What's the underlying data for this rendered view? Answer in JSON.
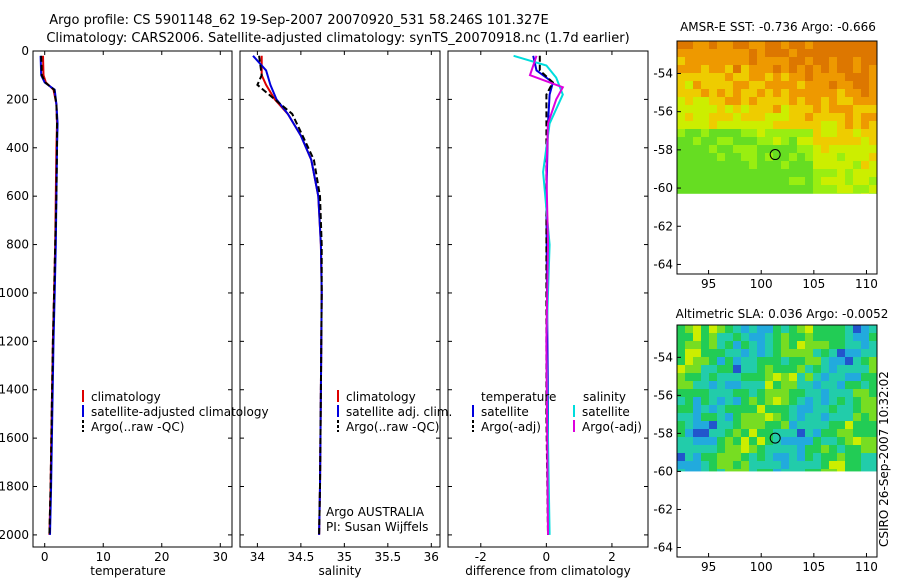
{
  "header": {
    "line1": "Argo profile: CS 5901148_62 19-Sep-2007 20070920_531 58.246S 101.327E",
    "line2": "Climatology: CARS2006. Satellite-adjusted climatology: synTS_20070918.nc (1.7d earlier)"
  },
  "footer_vertical": "CSIRO 26-Sep-2007 10:32:02",
  "chart_data": [
    {
      "type": "line",
      "name": "temperature-profile",
      "xlabel": "temperature",
      "ylabel": "",
      "xlim": [
        -2,
        32
      ],
      "ylim": [
        2050,
        0
      ],
      "xticks": [
        0,
        10,
        20,
        30
      ],
      "yticks": [
        0,
        200,
        400,
        600,
        800,
        1000,
        1200,
        1400,
        1600,
        1800,
        2000
      ],
      "series": [
        {
          "name": "climatology",
          "color": "#dd0000",
          "style": "solid",
          "x": [
            -0.3,
            -0.2,
            0.2,
            1.5,
            2.0,
            2.1,
            2.0,
            1.9,
            1.8,
            1.6,
            1.4,
            1.2,
            1.0,
            0.8
          ],
          "y": [
            20,
            100,
            130,
            160,
            220,
            300,
            400,
            600,
            800,
            1000,
            1200,
            1500,
            1800,
            2000
          ]
        },
        {
          "name": "satellite-adjusted climatology",
          "color": "#0000dd",
          "style": "solid",
          "x": [
            -0.7,
            -0.6,
            0.0,
            1.7,
            2.0,
            2.2,
            2.1,
            2.0,
            1.9,
            1.7,
            1.5,
            1.3,
            1.1,
            0.9
          ],
          "y": [
            20,
            100,
            130,
            160,
            220,
            300,
            400,
            600,
            800,
            1000,
            1200,
            1500,
            1800,
            2000
          ]
        },
        {
          "name": "Argo(..raw -QC)",
          "color": "#000000",
          "style": "dashed",
          "x": [
            -0.6,
            -0.5,
            0.1,
            1.6,
            2.0,
            2.1,
            2.1,
            2.0,
            1.8,
            1.6,
            1.4,
            1.2,
            1.0,
            0.8
          ],
          "y": [
            20,
            100,
            130,
            160,
            220,
            300,
            400,
            600,
            800,
            1000,
            1200,
            1500,
            1800,
            2000
          ]
        }
      ],
      "legend": {
        "position": "lower-right",
        "entries": [
          "climatology",
          "satellite-adjusted climatology",
          "Argo(..raw -QC)"
        ]
      }
    },
    {
      "type": "line",
      "name": "salinity-profile",
      "xlabel": "salinity",
      "xlim": [
        33.8,
        36.1
      ],
      "ylim": [
        2050,
        0
      ],
      "xticks": [
        34,
        34.5,
        35,
        35.5,
        36
      ],
      "yticks": [
        0,
        200,
        400,
        600,
        800,
        1000,
        1200,
        1400,
        1600,
        1800,
        2000
      ],
      "series": [
        {
          "name": "climatology",
          "color": "#dd0000",
          "style": "solid",
          "x": [
            34.05,
            34.05,
            34.1,
            34.2,
            34.35,
            34.5,
            34.62,
            34.7,
            34.73,
            34.74,
            34.73,
            34.72,
            34.71
          ],
          "y": [
            20,
            100,
            140,
            200,
            260,
            350,
            450,
            600,
            800,
            1000,
            1400,
            1800,
            2000
          ]
        },
        {
          "name": "satellite adj. clim.",
          "color": "#0000dd",
          "style": "solid",
          "x": [
            33.95,
            34.1,
            34.15,
            34.22,
            34.35,
            34.5,
            34.62,
            34.7,
            34.73,
            34.74,
            34.73,
            34.72,
            34.71
          ],
          "y": [
            20,
            80,
            140,
            200,
            260,
            350,
            450,
            600,
            800,
            1000,
            1400,
            1800,
            2000
          ]
        },
        {
          "name": "Argo(..raw -QC)",
          "color": "#000000",
          "style": "dashed",
          "x": [
            34.02,
            34.05,
            34.0,
            34.2,
            34.4,
            34.52,
            34.65,
            34.72,
            34.74,
            34.74,
            34.73,
            34.72,
            34.71
          ],
          "y": [
            20,
            100,
            140,
            200,
            260,
            350,
            450,
            600,
            800,
            1000,
            1400,
            1800,
            2000
          ]
        }
      ],
      "legend": {
        "position": "lower-right",
        "entries": [
          "climatology",
          "satellite adj. clim.",
          "Argo(..raw -QC)"
        ]
      },
      "annotation": [
        "Argo AUSTRALIA",
        "PI: Susan Wijffels"
      ]
    },
    {
      "type": "line",
      "name": "difference-profile",
      "xlabel": "difference from climatology",
      "xlim": [
        -3,
        3.1
      ],
      "ylim": [
        2050,
        0
      ],
      "xticks": [
        -2,
        0,
        2
      ],
      "yticks": [
        0,
        200,
        400,
        600,
        800,
        1000,
        1200,
        1400,
        1600,
        1800,
        2000
      ],
      "series": [
        {
          "name": "temperature satellite",
          "color": "#0000dd",
          "style": "solid",
          "x": [
            -0.4,
            -0.3,
            0.2,
            0.1,
            0.05,
            0.0,
            0.02,
            0.05,
            0.05
          ],
          "y": [
            20,
            80,
            130,
            180,
            300,
            600,
            1000,
            1500,
            2000
          ]
        },
        {
          "name": "temperature Argo(-adj)",
          "color": "#000000",
          "style": "dashed",
          "x": [
            -0.2,
            -0.2,
            0.2,
            0.0,
            0.0,
            0.0,
            0.0,
            0.0,
            0.05
          ],
          "y": [
            20,
            80,
            130,
            180,
            300,
            600,
            1000,
            1500,
            2000
          ]
        },
        {
          "name": "salinity satellite",
          "color": "#00dddd",
          "style": "solid",
          "x": [
            -1.0,
            0.0,
            0.3,
            0.5,
            0.1,
            -0.1,
            0.1,
            0.0,
            0.1
          ],
          "y": [
            20,
            60,
            110,
            180,
            300,
            500,
            800,
            1200,
            2000
          ]
        },
        {
          "name": "salinity Argo(-adj)",
          "color": "#dd00dd",
          "style": "solid",
          "x": [
            -0.3,
            -0.5,
            0.5,
            0.3,
            0.05,
            0.0,
            0.05,
            0.0,
            0.05
          ],
          "y": [
            20,
            100,
            150,
            200,
            300,
            500,
            800,
            1200,
            2000
          ]
        }
      ],
      "legend_headers": [
        "temperature",
        "salinity"
      ],
      "legend_left": [
        "satellite",
        "Argo(-adj)"
      ],
      "legend_right": [
        "satellite",
        "Argo(-adj)"
      ]
    },
    {
      "type": "heatmap",
      "name": "sst-map",
      "title": "AMSR-E SST: -0.736 Argo: -0.666",
      "xlim": [
        92,
        111
      ],
      "ylim": [
        -64.5,
        -52.3
      ],
      "xticks": [
        95,
        100,
        105,
        110
      ],
      "yticks": [
        -54,
        -56,
        -58,
        -60,
        -62,
        -64
      ],
      "float_position": [
        101.327,
        -58.246
      ],
      "data_extent_lat": [
        -60.3,
        -52.3
      ],
      "palette": [
        "#66dd22",
        "#99ee11",
        "#ccee00",
        "#eecc00",
        "#ee9900",
        "#dd7700"
      ]
    },
    {
      "type": "heatmap",
      "name": "sla-map",
      "title": "Altimetric SLA: 0.036 Argo: -0.0052",
      "xlim": [
        92,
        111
      ],
      "ylim": [
        -64.5,
        -52.3
      ],
      "xticks": [
        95,
        100,
        105,
        110
      ],
      "yticks": [
        -54,
        -56,
        -58,
        -60,
        -62,
        -64
      ],
      "float_position": [
        101.327,
        -58.246
      ],
      "data_extent_lat": [
        -60.0,
        -52.3
      ],
      "palette": [
        "#2255cc",
        "#22aadd",
        "#22ccaa",
        "#22cc55",
        "#77dd22",
        "#ccee00"
      ]
    }
  ]
}
